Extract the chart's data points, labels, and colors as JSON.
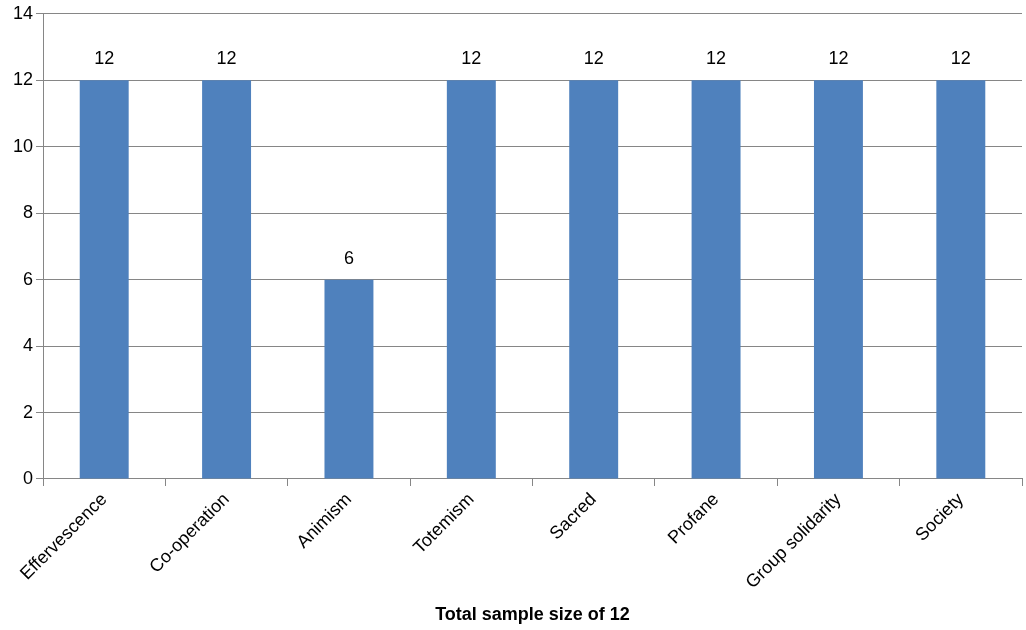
{
  "chart_data": {
    "type": "bar",
    "xlabel": "Total sample size of 12",
    "categories": [
      "Effervescence",
      "Co-operation",
      "Animism",
      "Totemism",
      "Sacred",
      "Profane",
      "Group solidarity",
      "Society"
    ],
    "values": [
      12,
      12,
      6,
      12,
      12,
      12,
      12,
      12
    ],
    "color": "#4f81bd",
    "ylim": [
      0,
      14
    ],
    "yticks": [
      0,
      2,
      4,
      6,
      8,
      10,
      12,
      14
    ],
    "grid": "y",
    "data_labels": true
  }
}
